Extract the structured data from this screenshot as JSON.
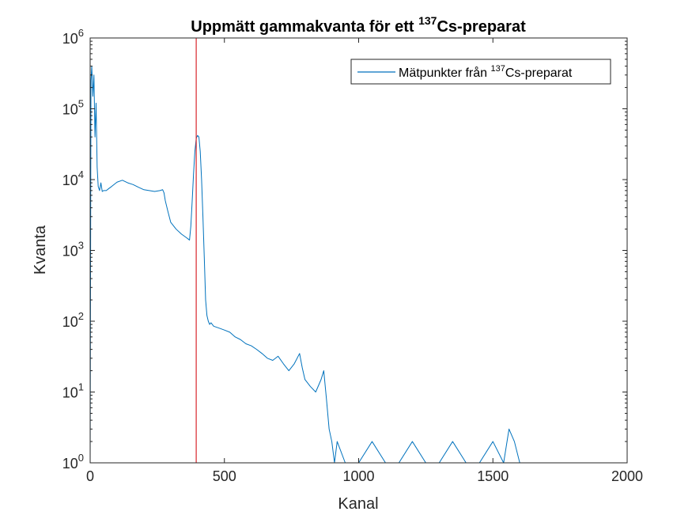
{
  "chart_data": {
    "type": "line",
    "title": {
      "main": "Uppmätt gammakvanta för ett ",
      "superscript": "137",
      "suffix": "Cs-preparat"
    },
    "xlabel": "Kanal",
    "ylabel": "Kvanta",
    "xlim": [
      0,
      2000
    ],
    "ylim": [
      1,
      1000000
    ],
    "yscale": "log",
    "xticks": [
      0,
      500,
      1000,
      1500,
      2000
    ],
    "xtick_labels": [
      "0",
      "500",
      "1000",
      "1500",
      "2000"
    ],
    "yticks": [
      1,
      10,
      100,
      1000,
      10000,
      100000,
      1000000
    ],
    "ytick_labels": [
      {
        "base": "10",
        "exp": "0"
      },
      {
        "base": "10",
        "exp": "1"
      },
      {
        "base": "10",
        "exp": "2"
      },
      {
        "base": "10",
        "exp": "3"
      },
      {
        "base": "10",
        "exp": "4"
      },
      {
        "base": "10",
        "exp": "5"
      },
      {
        "base": "10",
        "exp": "6"
      }
    ],
    "grid": false,
    "legend": {
      "location": "top-right",
      "entries": [
        {
          "prefix": "Mätpunkter från ",
          "superscript": "137",
          "suffix": "Cs-preparat"
        }
      ]
    },
    "series": [
      {
        "name": "Mätpunkter från 137Cs-preparat",
        "color": "#0072BD",
        "x": [
          0,
          3,
          6,
          10,
          14,
          18,
          22,
          26,
          30,
          35,
          40,
          45,
          50,
          60,
          70,
          80,
          100,
          120,
          140,
          160,
          180,
          200,
          220,
          240,
          260,
          270,
          275,
          280,
          290,
          300,
          320,
          340,
          360,
          370,
          375,
          380,
          385,
          390,
          395,
          400,
          405,
          410,
          415,
          420,
          425,
          430,
          435,
          440,
          445,
          450,
          460,
          480,
          500,
          520,
          540,
          560,
          580,
          600,
          620,
          640,
          660,
          680,
          700,
          720,
          740,
          760,
          780,
          790,
          800,
          820,
          840,
          860,
          870,
          880,
          890,
          900,
          910,
          920,
          950,
          1000,
          1050,
          1100,
          1150,
          1200,
          1250,
          1300,
          1350,
          1400,
          1450,
          1500,
          1540,
          1560,
          1580,
          1600
        ],
        "y": [
          1,
          250000,
          400000,
          150000,
          300000,
          40000,
          120000,
          15000,
          8000,
          7000,
          9000,
          6800,
          7000,
          7000,
          7500,
          8000,
          9200,
          9800,
          9000,
          8500,
          7800,
          7200,
          7000,
          6800,
          7000,
          7200,
          6500,
          5000,
          3500,
          2500,
          2000,
          1700,
          1500,
          1400,
          2200,
          5000,
          12000,
          25000,
          38000,
          42000,
          40000,
          25000,
          10000,
          3000,
          800,
          200,
          120,
          100,
          90,
          95,
          85,
          80,
          75,
          70,
          60,
          55,
          48,
          45,
          40,
          35,
          30,
          28,
          32,
          25,
          20,
          25,
          35,
          22,
          15,
          12,
          10,
          15,
          20,
          8,
          3,
          2,
          1,
          2,
          1,
          1,
          2,
          1,
          1,
          2,
          1,
          1,
          2,
          1,
          1,
          2,
          1,
          3,
          2,
          1
        ]
      }
    ],
    "annotations": [
      {
        "type": "vline",
        "x": 395,
        "color": "#D9262B"
      }
    ]
  }
}
